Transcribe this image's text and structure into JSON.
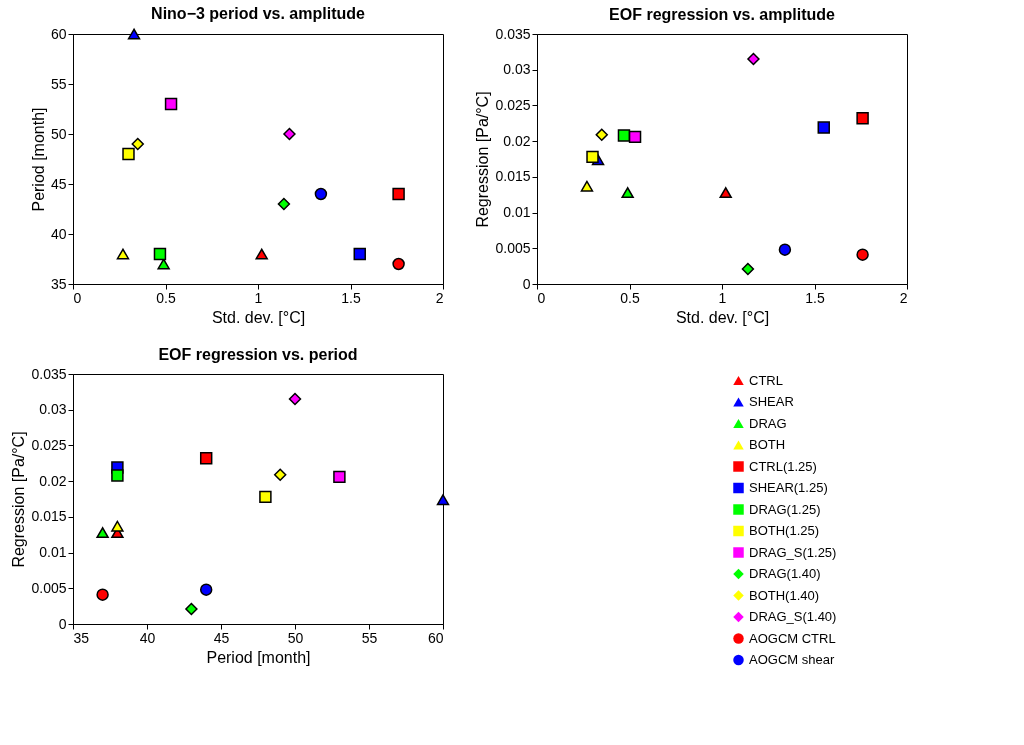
{
  "chart_data": [
    {
      "type": "scatter",
      "title": "Nino−3 period vs. amplitude",
      "xlabel": "Std. dev. [°C]",
      "ylabel": "Period [month]",
      "xlim": [
        0,
        2
      ],
      "xticks": [
        0,
        0.5,
        1,
        1.5,
        2
      ],
      "ylim": [
        35,
        60
      ],
      "yticks": [
        35,
        40,
        45,
        50,
        55,
        60
      ],
      "legend": false,
      "series": [
        {
          "color": "#ff0000",
          "marker": "triangle",
          "x": [
            1.02
          ],
          "values": [
            38
          ]
        },
        {
          "color": "#0000ff",
          "marker": "triangle",
          "x": [
            0.33
          ],
          "values": [
            60
          ]
        },
        {
          "color": "#00ff00",
          "marker": "triangle",
          "x": [
            0.49
          ],
          "values": [
            37
          ]
        },
        {
          "color": "#ffff00",
          "marker": "triangle",
          "x": [
            0.27
          ],
          "values": [
            38
          ]
        },
        {
          "color": "#ff0000",
          "marker": "square",
          "x": [
            1.76
          ],
          "values": [
            44
          ]
        },
        {
          "color": "#0000ff",
          "marker": "square",
          "x": [
            1.55
          ],
          "values": [
            38
          ]
        },
        {
          "color": "#00ff00",
          "marker": "square",
          "x": [
            0.47
          ],
          "values": [
            38
          ]
        },
        {
          "color": "#ffff00",
          "marker": "square",
          "x": [
            0.3
          ],
          "values": [
            48
          ]
        },
        {
          "color": "#ff00ff",
          "marker": "square",
          "x": [
            0.53
          ],
          "values": [
            53
          ]
        },
        {
          "color": "#00ff00",
          "marker": "diamond",
          "x": [
            1.14
          ],
          "values": [
            43
          ]
        },
        {
          "color": "#ffff00",
          "marker": "diamond",
          "x": [
            0.35
          ],
          "values": [
            49
          ]
        },
        {
          "color": "#ff00ff",
          "marker": "diamond",
          "x": [
            1.17
          ],
          "values": [
            50
          ]
        },
        {
          "color": "#ff0000",
          "marker": "circle",
          "x": [
            1.76
          ],
          "values": [
            37
          ]
        },
        {
          "color": "#0000ff",
          "marker": "circle",
          "x": [
            1.34
          ],
          "values": [
            44
          ]
        }
      ]
    },
    {
      "type": "scatter",
      "title": "EOF regression vs. amplitude",
      "xlabel": "Std. dev. [°C]",
      "ylabel": "Regression [Pa/°C]",
      "xlim": [
        0,
        2
      ],
      "xticks": [
        0,
        0.5,
        1,
        1.5,
        2
      ],
      "ylim": [
        0,
        0.035
      ],
      "yticks": [
        0,
        0.005,
        0.01,
        0.015,
        0.02,
        0.025,
        0.03,
        0.035
      ],
      "legend": false,
      "series": [
        {
          "color": "#ff0000",
          "marker": "triangle",
          "x": [
            1.02
          ],
          "values": [
            0.0128
          ]
        },
        {
          "color": "#0000ff",
          "marker": "triangle",
          "x": [
            0.33
          ],
          "values": [
            0.0174
          ]
        },
        {
          "color": "#00ff00",
          "marker": "triangle",
          "x": [
            0.49
          ],
          "values": [
            0.0128
          ]
        },
        {
          "color": "#ffff00",
          "marker": "triangle",
          "x": [
            0.27
          ],
          "values": [
            0.0137
          ]
        },
        {
          "color": "#ff0000",
          "marker": "square",
          "x": [
            1.76
          ],
          "values": [
            0.0232
          ]
        },
        {
          "color": "#0000ff",
          "marker": "square",
          "x": [
            1.55
          ],
          "values": [
            0.0219
          ]
        },
        {
          "color": "#00ff00",
          "marker": "square",
          "x": [
            0.47
          ],
          "values": [
            0.0208
          ]
        },
        {
          "color": "#ffff00",
          "marker": "square",
          "x": [
            0.3
          ],
          "values": [
            0.0178
          ]
        },
        {
          "color": "#ff00ff",
          "marker": "square",
          "x": [
            0.53
          ],
          "values": [
            0.0206
          ]
        },
        {
          "color": "#00ff00",
          "marker": "diamond",
          "x": [
            1.14
          ],
          "values": [
            0.0021
          ]
        },
        {
          "color": "#ffff00",
          "marker": "diamond",
          "x": [
            0.35
          ],
          "values": [
            0.0209
          ]
        },
        {
          "color": "#ff00ff",
          "marker": "diamond",
          "x": [
            1.17
          ],
          "values": [
            0.0315
          ]
        },
        {
          "color": "#ff0000",
          "marker": "circle",
          "x": [
            1.76
          ],
          "values": [
            0.0041
          ]
        },
        {
          "color": "#0000ff",
          "marker": "circle",
          "x": [
            1.34
          ],
          "values": [
            0.0048
          ]
        }
      ]
    },
    {
      "type": "scatter",
      "title": "EOF regression vs. period",
      "xlabel": "Period [month]",
      "ylabel": "Regression [Pa/°C]",
      "xlim": [
        35,
        60
      ],
      "xticks": [
        35,
        40,
        45,
        50,
        55,
        60
      ],
      "ylim": [
        0,
        0.035
      ],
      "yticks": [
        0,
        0.005,
        0.01,
        0.015,
        0.02,
        0.025,
        0.03,
        0.035
      ],
      "legend": "right",
      "series": [
        {
          "name": "CTRL",
          "color": "#ff0000",
          "marker": "triangle",
          "x": [
            38
          ],
          "values": [
            0.0128
          ]
        },
        {
          "name": "SHEAR",
          "color": "#0000ff",
          "marker": "triangle",
          "x": [
            60
          ],
          "values": [
            0.0174
          ]
        },
        {
          "name": "DRAG",
          "color": "#00ff00",
          "marker": "triangle",
          "x": [
            37
          ],
          "values": [
            0.0128
          ]
        },
        {
          "name": "BOTH",
          "color": "#ffff00",
          "marker": "triangle",
          "x": [
            38
          ],
          "values": [
            0.0137
          ]
        },
        {
          "name": "CTRL(1.25)",
          "color": "#ff0000",
          "marker": "square",
          "x": [
            44
          ],
          "values": [
            0.0232
          ]
        },
        {
          "name": "SHEAR(1.25)",
          "color": "#0000ff",
          "marker": "square",
          "x": [
            38
          ],
          "values": [
            0.0219
          ]
        },
        {
          "name": "DRAG(1.25)",
          "color": "#00ff00",
          "marker": "square",
          "x": [
            38
          ],
          "values": [
            0.0208
          ]
        },
        {
          "name": "BOTH(1.25)",
          "color": "#ffff00",
          "marker": "square",
          "x": [
            48
          ],
          "values": [
            0.0178
          ]
        },
        {
          "name": "DRAG_S(1.25)",
          "color": "#ff00ff",
          "marker": "square",
          "x": [
            53
          ],
          "values": [
            0.0206
          ]
        },
        {
          "name": "DRAG(1.40)",
          "color": "#00ff00",
          "marker": "diamond",
          "x": [
            43
          ],
          "values": [
            0.0021
          ]
        },
        {
          "name": "BOTH(1.40)",
          "color": "#ffff00",
          "marker": "diamond",
          "x": [
            49
          ],
          "values": [
            0.0209
          ]
        },
        {
          "name": "DRAG_S(1.40)",
          "color": "#ff00ff",
          "marker": "diamond",
          "x": [
            50
          ],
          "values": [
            0.0315
          ]
        },
        {
          "name": "AOGCM CTRL",
          "color": "#ff0000",
          "marker": "circle",
          "x": [
            37
          ],
          "values": [
            0.0041
          ]
        },
        {
          "name": "AOGCM shear",
          "color": "#0000ff",
          "marker": "circle",
          "x": [
            44
          ],
          "values": [
            0.0048
          ]
        }
      ]
    }
  ]
}
